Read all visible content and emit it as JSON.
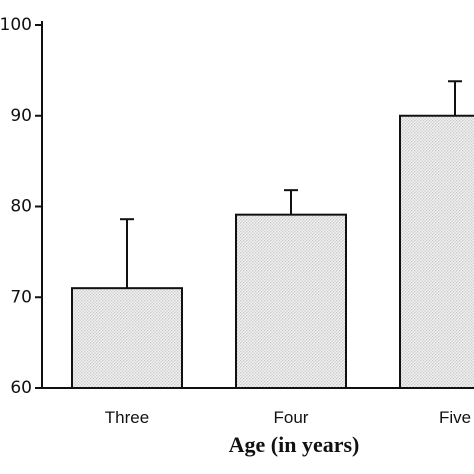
{
  "chart_data": {
    "type": "bar",
    "x_label": "Age (in years)",
    "categories": [
      "Three",
      "Four",
      "Five"
    ],
    "values": [
      71,
      79.1,
      90
    ],
    "errors": [
      7.6,
      2.7,
      3.8
    ],
    "color": "#c8c8c8",
    "ylim": [
      60,
      100
    ],
    "yticks": [
      60,
      70,
      80,
      90,
      100
    ]
  }
}
